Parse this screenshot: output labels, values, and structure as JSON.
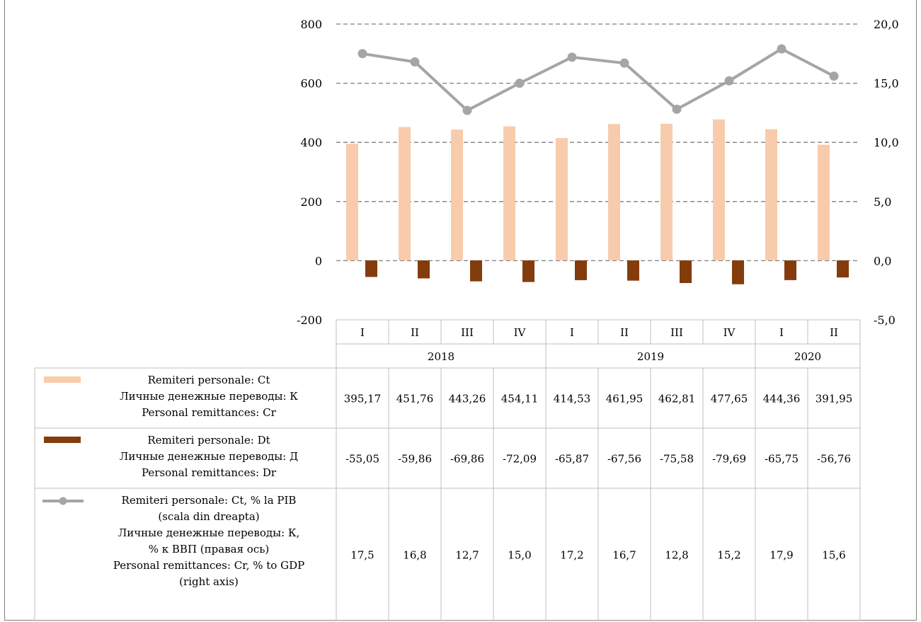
{
  "chart_data": {
    "type": "bar",
    "title": "",
    "xlabel": "",
    "ylabel": "",
    "years": [
      {
        "label": "2018",
        "span": 4
      },
      {
        "label": "2019",
        "span": 4
      },
      {
        "label": "2020",
        "span": 2
      }
    ],
    "categories": [
      "I",
      "II",
      "III",
      "IV",
      "I",
      "II",
      "III",
      "IV",
      "I",
      "II"
    ],
    "y_left": {
      "min": -200,
      "max": 800,
      "step": 200,
      "tick_labels": [
        "800",
        "600",
        "400",
        "200",
        "0",
        "-200"
      ]
    },
    "y_right": {
      "min": -5,
      "max": 20,
      "step": 5,
      "tick_labels": [
        "20,0",
        "15,0",
        "10,0",
        "5,0",
        "0,0",
        "-5,0"
      ]
    },
    "grid": true,
    "legend_placement": "data-table-left",
    "series": [
      {
        "name_lines": [
          "Remiteri personale: Ct",
          "Личные денежные переводы: К",
          "Personal remittances: Cr"
        ],
        "kind": "bar",
        "axis": "left",
        "color": "#f8cbad",
        "values": [
          395.17,
          451.76,
          443.26,
          454.11,
          414.53,
          461.95,
          462.81,
          477.65,
          444.36,
          391.95
        ],
        "labels": [
          "395,17",
          "451,76",
          "443,26",
          "454,11",
          "414,53",
          "461,95",
          "462,81",
          "477,65",
          "444,36",
          "391,95"
        ]
      },
      {
        "name_lines": [
          "Remiteri personale: Dt",
          "Личные денежные переводы: Д",
          "Personal remittances: Dr"
        ],
        "kind": "bar",
        "axis": "left",
        "color": "#843c0c",
        "values": [
          -55.05,
          -59.86,
          -69.86,
          -72.09,
          -65.87,
          -67.56,
          -75.58,
          -79.69,
          -65.75,
          -56.76
        ],
        "labels": [
          "-55,05",
          "-59,86",
          "-69,86",
          "-72,09",
          "-65,87",
          "-67,56",
          "-75,58",
          "-79,69",
          "-65,75",
          "-56,76"
        ]
      },
      {
        "name_lines": [
          "Remiteri personale: Ct, % la PIB",
          "(scala din dreapta)",
          "Личные денежные переводы: К,",
          "% к ВВП (правая ось)",
          "Personal remittances: Cr, % to GDP",
          "(right axis)"
        ],
        "kind": "line",
        "axis": "right",
        "color": "#a5a5a5",
        "values": [
          17.5,
          16.8,
          12.7,
          15.0,
          17.2,
          16.7,
          12.8,
          15.2,
          17.9,
          15.6
        ],
        "labels": [
          "17,5",
          "16,8",
          "12,7",
          "15,0",
          "17,2",
          "16,7",
          "12,8",
          "15,2",
          "17,9",
          "15,6"
        ]
      }
    ]
  }
}
